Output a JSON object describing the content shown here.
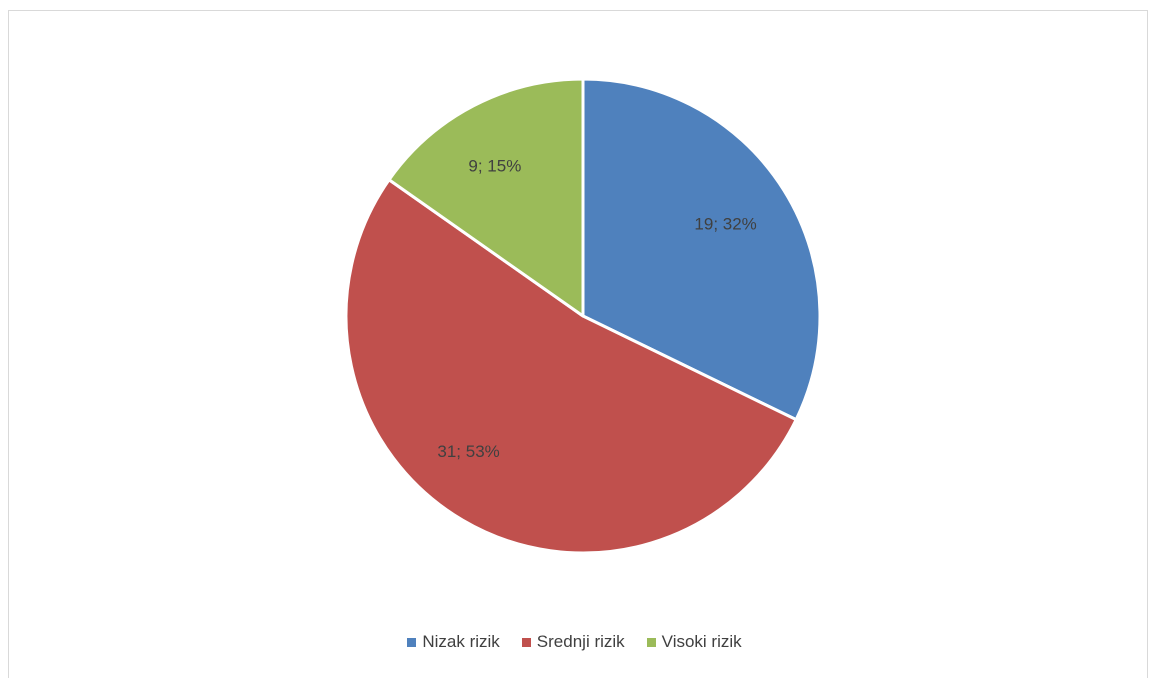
{
  "chart_data": {
    "type": "pie",
    "title": "",
    "start_angle_deg": 0,
    "direction": "clockwise",
    "legend_position": "bottom",
    "slices": [
      {
        "name": "Nizak rizik",
        "value": 19,
        "percent": 32,
        "label": "19; 32%",
        "color": "#4F81BD"
      },
      {
        "name": "Srednji rizik",
        "value": 31,
        "percent": 53,
        "label": "31; 53%",
        "color": "#C0504D"
      },
      {
        "name": "Visoki rizik",
        "value": 9,
        "percent": 15,
        "label": "9; 15%",
        "color": "#9BBB59"
      }
    ]
  }
}
